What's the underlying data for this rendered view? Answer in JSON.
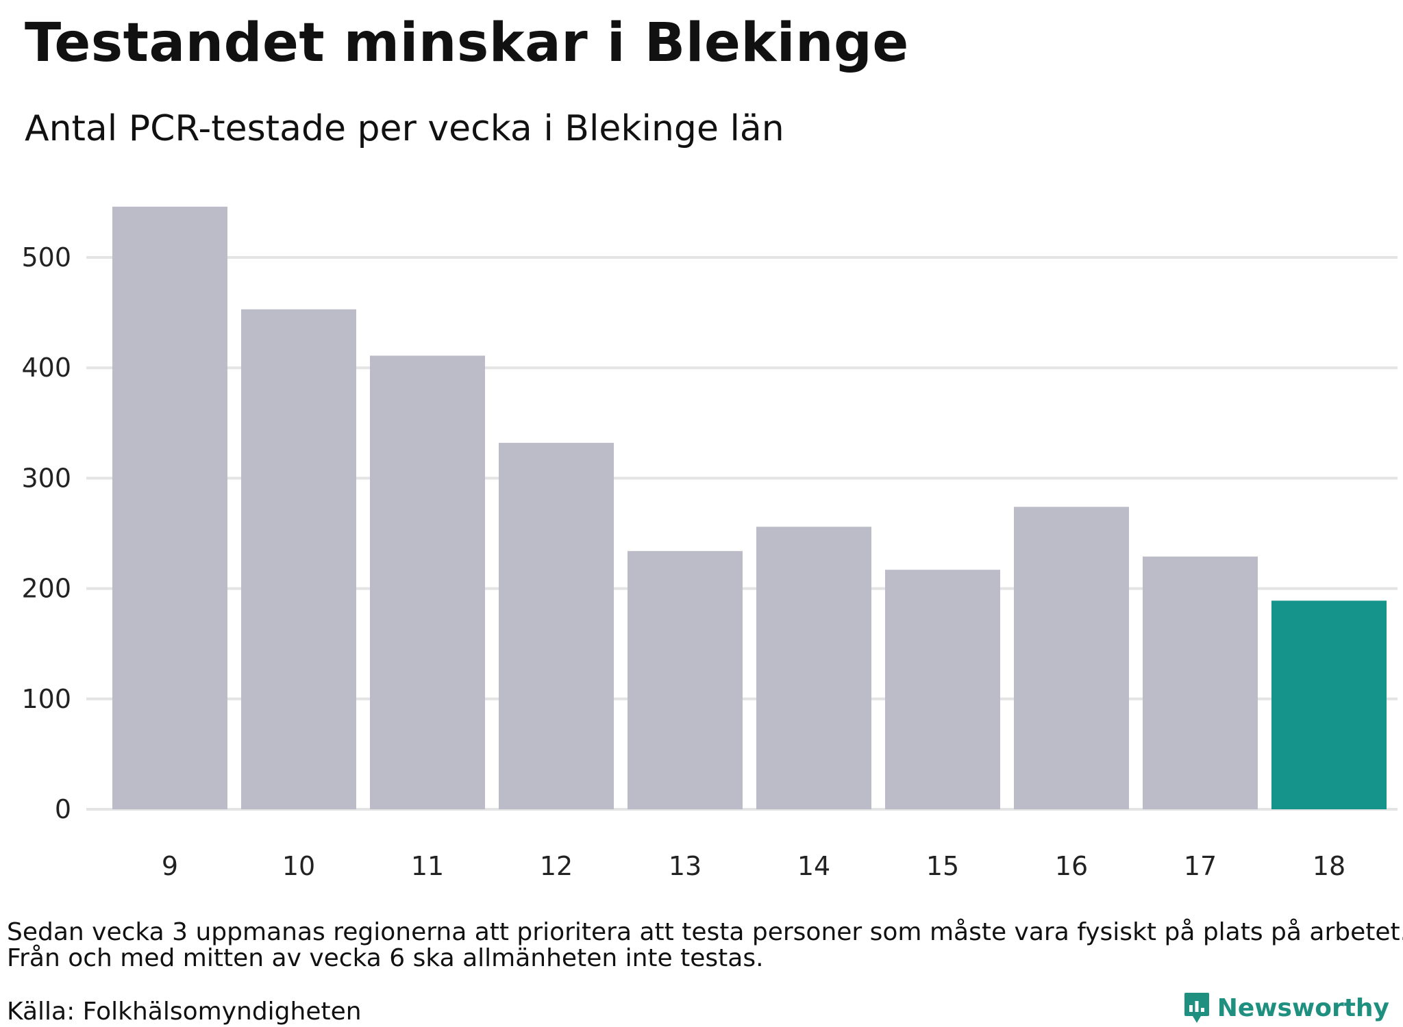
{
  "header": {
    "title": "Testandet minskar i Blekinge",
    "subtitle": "Antal PCR-testade per vecka i Blekinge län"
  },
  "chart_data": {
    "type": "bar",
    "title": "Testandet minskar i Blekinge",
    "subtitle": "Antal PCR-testade per vecka i Blekinge län",
    "xlabel": "",
    "ylabel": "",
    "categories": [
      "9",
      "10",
      "11",
      "12",
      "13",
      "14",
      "15",
      "16",
      "17",
      "18"
    ],
    "values": [
      546,
      453,
      411,
      332,
      234,
      256,
      217,
      274,
      229,
      189
    ],
    "yticks": [
      0,
      100,
      200,
      300,
      400,
      500
    ],
    "ylim": [
      0,
      560
    ],
    "grid": true,
    "legend": "none",
    "colors": {
      "bar": "#bcbbc8",
      "highlight": "#14948a",
      "grid": "#e4e4e4"
    },
    "highlight_category": "18"
  },
  "footer": {
    "note_line1": "Sedan vecka 3 uppmanas regionerna att prioritera att testa personer som måste vara fysiskt på plats på arbetet.",
    "note_line2": "Från och med mitten av vecka 6 ska allmänheten inte testas.",
    "source": "Källa: Folkhälsomyndigheten",
    "brand": "Newsworthy",
    "brand_icon": "bar-chart-speech-bubble-icon",
    "brand_color": "#1f8f80"
  }
}
